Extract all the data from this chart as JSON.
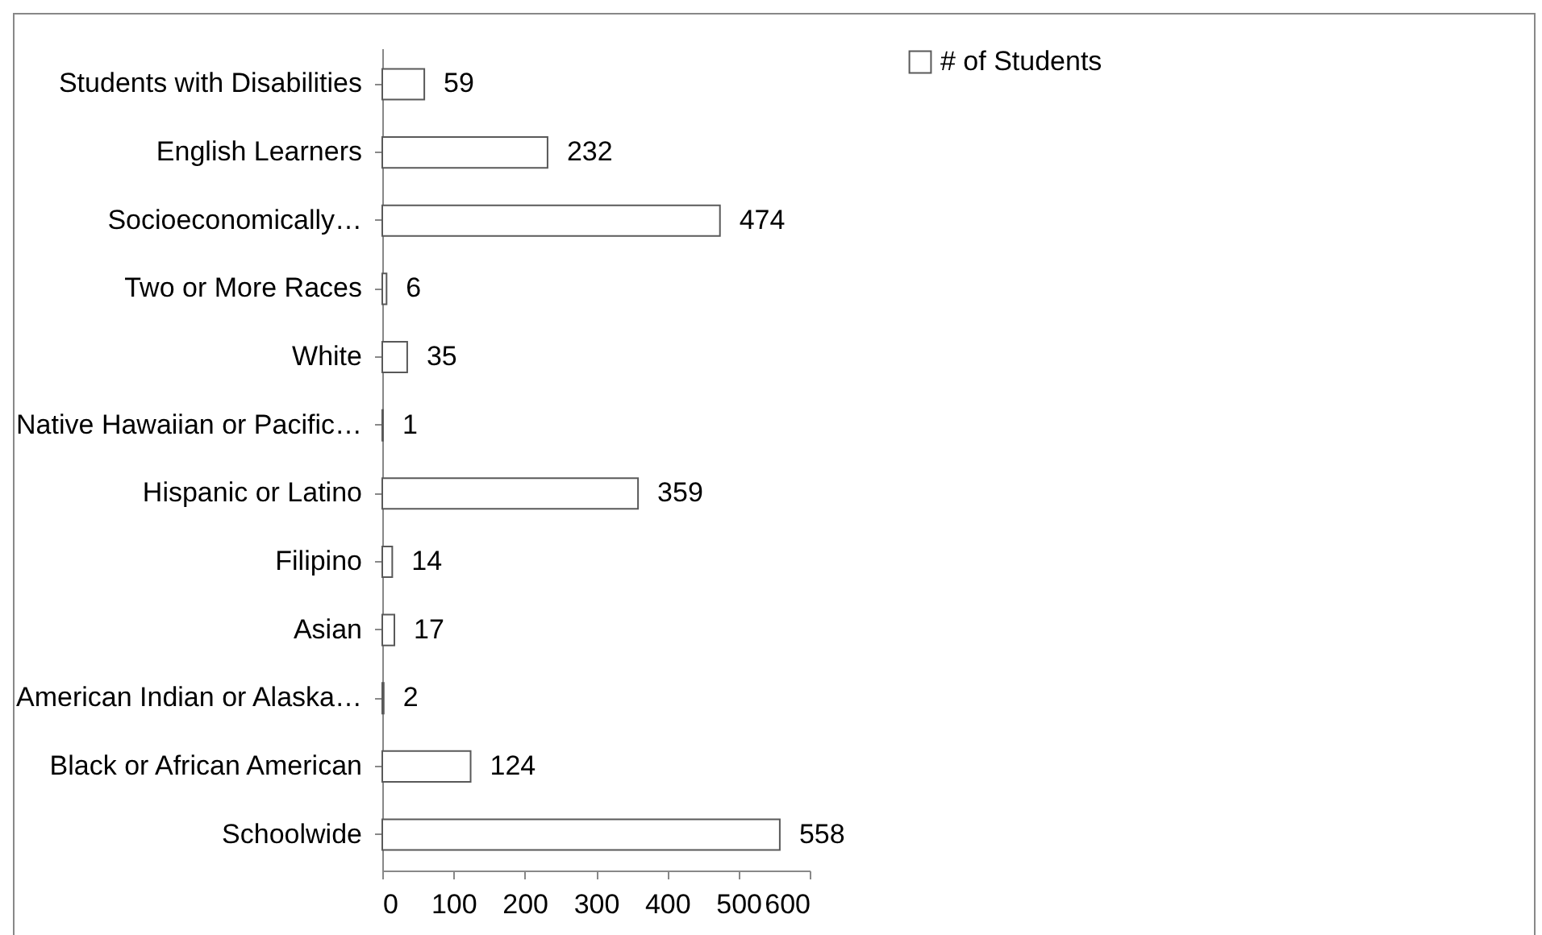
{
  "chart_data": {
    "type": "bar",
    "orientation": "horizontal",
    "categories": [
      "Students with Disabilities",
      "English Learners",
      "Socioeconomically…",
      "Two or More Races",
      "White",
      "Native Hawaiian or Pacific…",
      "Hispanic or Latino",
      "Filipino",
      "Asian",
      "American Indian or Alaska…",
      "Black or African American",
      "Schoolwide"
    ],
    "series": [
      {
        "name": "# of Students",
        "color": "#ffffff",
        "values": [
          59,
          232,
          474,
          6,
          35,
          1,
          359,
          14,
          17,
          2,
          124,
          558
        ]
      }
    ],
    "xlim": [
      0,
      600
    ],
    "xticks": [
      0,
      100,
      200,
      300,
      400,
      500,
      600
    ],
    "data_labels": true,
    "grid": false,
    "legend": "right"
  }
}
